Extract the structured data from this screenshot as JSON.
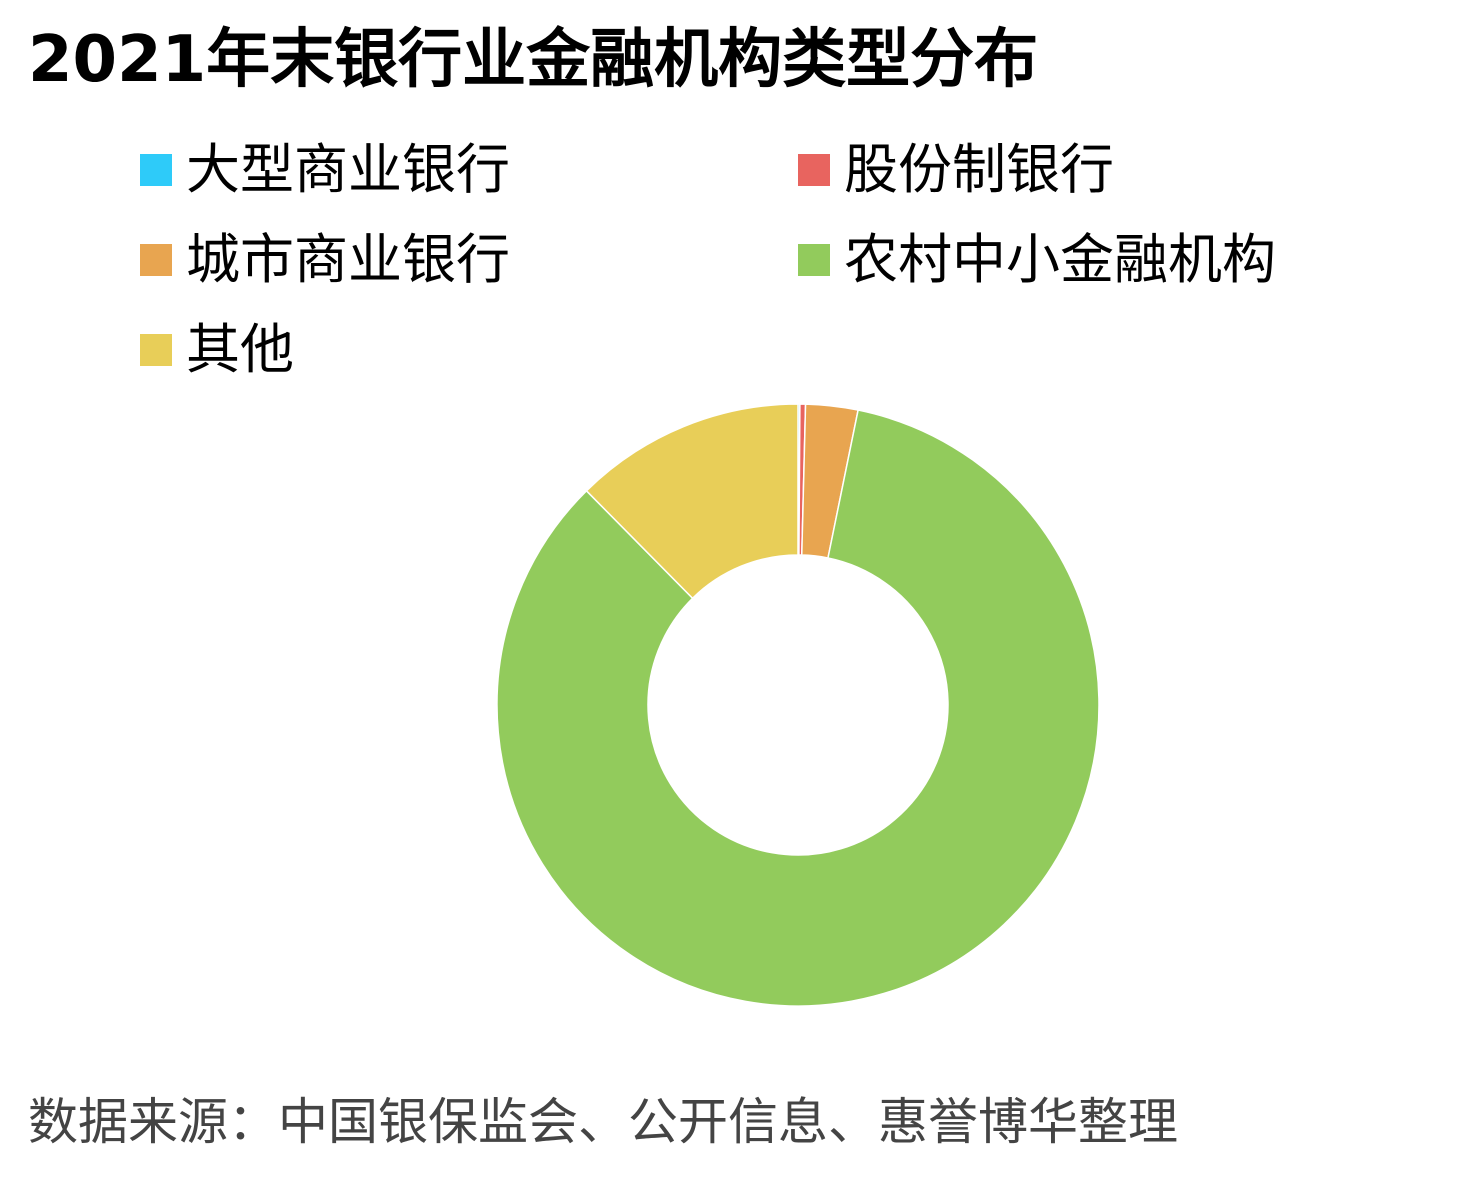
{
  "title": "2021年末银行业金融机构类型分布",
  "source": "数据来源：中国银保监会、公开信息、惠誉博华整理",
  "chart_data": {
    "type": "pie",
    "donut": true,
    "title": "2021年末银行业金融机构类型分布",
    "legend_position": "top",
    "categories": [
      "大型商业银行",
      "股份制银行",
      "城市商业银行",
      "农村中小金融机构",
      "其他"
    ],
    "values": [
      0.1,
      0.3,
      2.8,
      84.4,
      12.4
    ],
    "colors": [
      "#2ECBF9",
      "#E8645F",
      "#E8A550",
      "#92CB5C",
      "#E8CE58"
    ]
  }
}
